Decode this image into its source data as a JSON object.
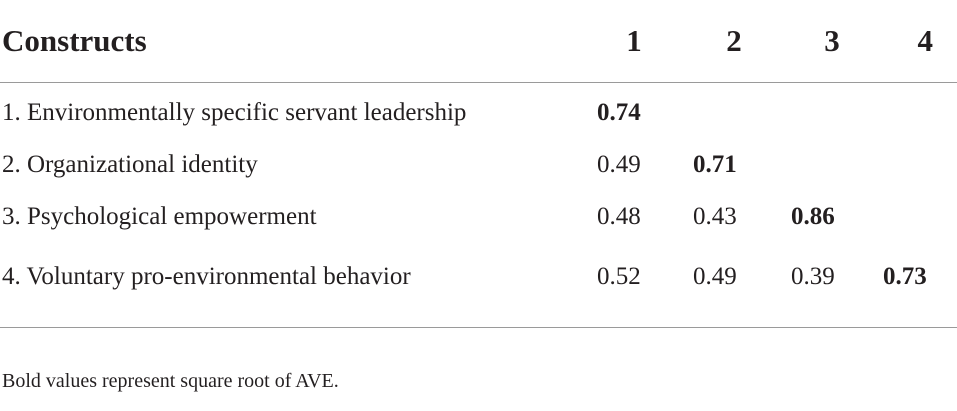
{
  "table": {
    "header": {
      "constructs": "Constructs",
      "columns": [
        "1",
        "2",
        "3",
        "4"
      ]
    },
    "rows": [
      {
        "label": "1. Environmentally specific servant leadership",
        "values": [
          "0.74",
          "",
          "",
          ""
        ]
      },
      {
        "label": "2. Organizational identity",
        "values": [
          "0.49",
          "0.71",
          "",
          ""
        ]
      },
      {
        "label": "3. Psychological empowerment",
        "values": [
          "0.48",
          "0.43",
          "0.86",
          ""
        ]
      },
      {
        "label": "4. Voluntary pro-environmental behavior",
        "values": [
          "0.52",
          "0.49",
          "0.39",
          "0.73"
        ]
      }
    ]
  },
  "footnote": "Bold values represent square root of AVE."
}
